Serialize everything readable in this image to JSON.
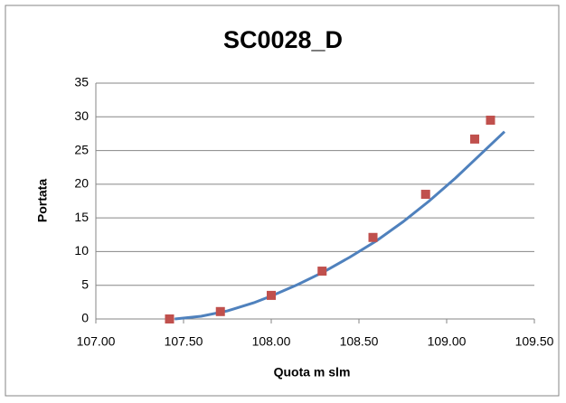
{
  "chart_data": {
    "type": "scatter",
    "title": "SC0028_D",
    "xlabel": "Quota m slm",
    "ylabel": "Portata",
    "x": [
      107.42,
      107.71,
      108.0,
      108.29,
      108.58,
      108.88,
      109.16,
      109.25
    ],
    "values": [
      0,
      1.1,
      3.5,
      7.1,
      12.1,
      18.5,
      26.7,
      29.5
    ],
    "color": "#c0504d",
    "trendline": {
      "color": "#4f81bd",
      "x": [
        107.45,
        107.6,
        107.75,
        107.9,
        108.0,
        108.15,
        108.3,
        108.45,
        108.6,
        108.75,
        108.9,
        109.05,
        109.2,
        109.33
      ],
      "values": [
        0,
        0.4,
        1.2,
        2.4,
        3.4,
        5.1,
        7.0,
        9.2,
        11.6,
        14.4,
        17.5,
        20.9,
        24.6,
        27.8
      ]
    },
    "xlim": [
      107,
      109.5
    ],
    "xticks": [
      {
        "value": 107,
        "label": "107.00"
      },
      {
        "value": 107.5,
        "label": "107.50"
      },
      {
        "value": 108,
        "label": "108.00"
      },
      {
        "value": 108.5,
        "label": "108.50"
      },
      {
        "value": 109,
        "label": "109.00"
      },
      {
        "value": 109.5,
        "label": "109.50"
      }
    ],
    "ylim": [
      0,
      35
    ],
    "yticks": [
      0,
      5,
      10,
      15,
      20,
      25,
      30,
      35
    ],
    "grid": true
  }
}
